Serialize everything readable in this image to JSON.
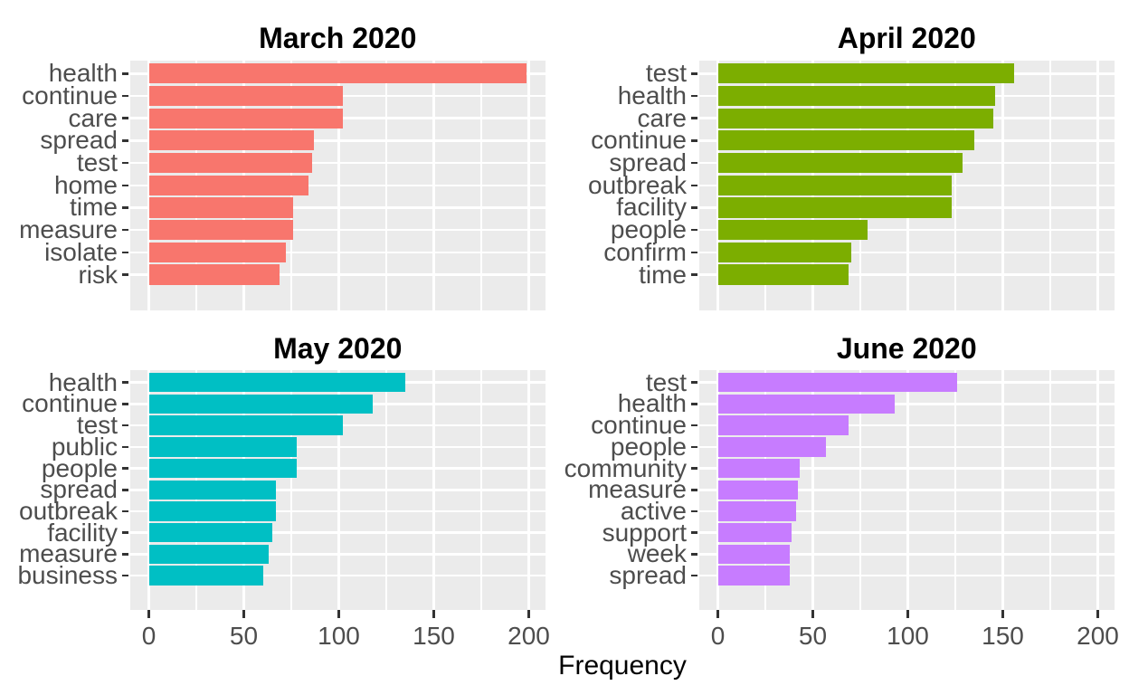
{
  "figure": {
    "xlabel": "Frequency",
    "background": "#FFFFFF",
    "panel_background": "#EBEBEB",
    "gridline_color": "#FFFFFF",
    "axis_text_color": "#4D4D4D",
    "tick_mark_color": "#333333",
    "title_color": "#000000",
    "x_axis": {
      "ticks": [
        0,
        50,
        100,
        150,
        200
      ],
      "minor_ticks": [
        25,
        75,
        125,
        175
      ],
      "limits": [
        0,
        200
      ]
    }
  },
  "chart_data": [
    {
      "type": "bar",
      "orientation": "horizontal",
      "title": "March 2020",
      "color": "#F8766D",
      "categories": [
        "health",
        "continue",
        "care",
        "spread",
        "test",
        "home",
        "time",
        "measure",
        "isolate",
        "risk"
      ],
      "values": [
        199,
        102,
        102,
        87,
        86,
        84,
        76,
        76,
        72,
        69
      ],
      "xlabel": "Frequency",
      "xlim": [
        0,
        200
      ],
      "x_ticks": [
        0,
        50,
        100,
        150,
        200
      ],
      "grid": true,
      "legend": "none"
    },
    {
      "type": "bar",
      "orientation": "horizontal",
      "title": "April 2020",
      "color": "#7CAE00",
      "categories": [
        "test",
        "health",
        "care",
        "continue",
        "spread",
        "outbreak",
        "facility",
        "people",
        "confirm",
        "time"
      ],
      "values": [
        156,
        146,
        145,
        135,
        129,
        123,
        123,
        79,
        70,
        69
      ],
      "xlabel": "Frequency",
      "xlim": [
        0,
        200
      ],
      "x_ticks": [
        0,
        50,
        100,
        150,
        200
      ],
      "grid": true,
      "legend": "none"
    },
    {
      "type": "bar",
      "orientation": "horizontal",
      "title": "May 2020",
      "color": "#00BFC4",
      "categories": [
        "health",
        "continue",
        "test",
        "public",
        "people",
        "spread",
        "outbreak",
        "facility",
        "measure",
        "business"
      ],
      "values": [
        135,
        118,
        102,
        78,
        78,
        67,
        67,
        65,
        63,
        60
      ],
      "xlabel": "Frequency",
      "xlim": [
        0,
        200
      ],
      "x_ticks": [
        0,
        50,
        100,
        150,
        200
      ],
      "grid": true,
      "legend": "none"
    },
    {
      "type": "bar",
      "orientation": "horizontal",
      "title": "June 2020",
      "color": "#C77CFF",
      "categories": [
        "test",
        "health",
        "continue",
        "people",
        "community",
        "measure",
        "active",
        "support",
        "week",
        "spread"
      ],
      "values": [
        126,
        93,
        69,
        57,
        43,
        42,
        41,
        39,
        38,
        38
      ],
      "xlabel": "Frequency",
      "xlim": [
        0,
        200
      ],
      "x_ticks": [
        0,
        50,
        100,
        150,
        200
      ],
      "grid": true,
      "legend": "none"
    }
  ]
}
